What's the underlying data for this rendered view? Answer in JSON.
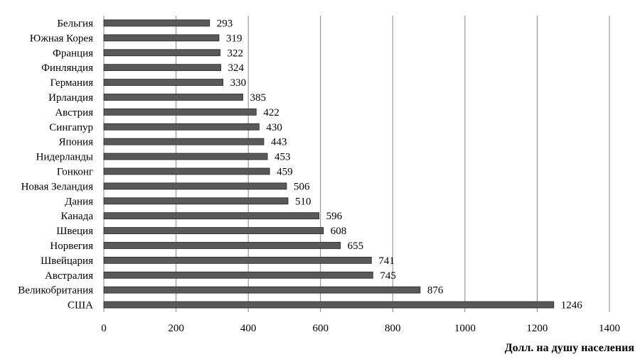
{
  "chart_data": {
    "type": "bar",
    "orientation": "horizontal",
    "categories": [
      "Бельгия",
      "Южная Корея",
      "Франция",
      "Финляндия",
      "Германия",
      "Ирландия",
      "Австрия",
      "Сингапур",
      "Япония",
      "Нидерланды",
      "Гонконг",
      "Новая Зеландия",
      "Дания",
      "Канада",
      "Швеция",
      "Норвегия",
      "Швейцария",
      "Австралия",
      "Великобритания",
      "США"
    ],
    "values": [
      293,
      319,
      322,
      324,
      330,
      385,
      422,
      430,
      443,
      453,
      459,
      506,
      510,
      596,
      608,
      655,
      741,
      745,
      876,
      1246
    ],
    "xlabel": "Долл. на душу населения",
    "ylabel": "",
    "xlim": [
      0,
      1400
    ],
    "xticks": [
      0,
      200,
      400,
      600,
      800,
      1000,
      1200,
      1400
    ],
    "grid": "vertical",
    "legend": "none",
    "data_labels": true,
    "colors": {
      "bar_fill": "#595959",
      "bar_stroke": "#262626",
      "grid": "#888888",
      "axis": "#888888",
      "text": "#000000"
    }
  }
}
